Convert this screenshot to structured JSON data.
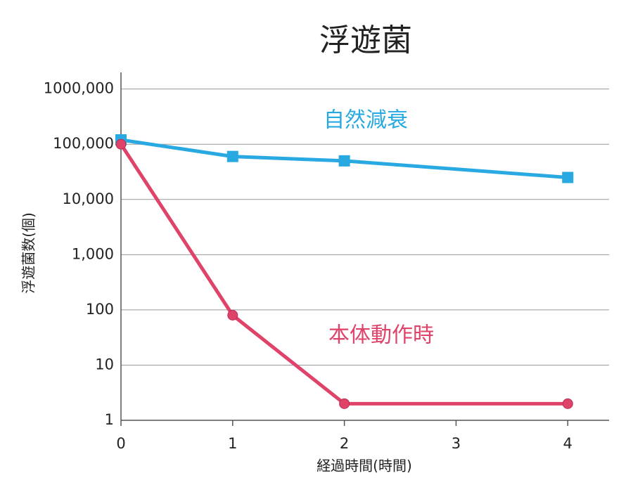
{
  "chart_data": {
    "type": "line",
    "title": "浮遊菌",
    "x_label": "経過時間(時間)",
    "y_label": "浮遊菌数(個)",
    "x": [
      0,
      1,
      2,
      4
    ],
    "series": [
      {
        "name": "自然減衰",
        "color": "#29a9e1",
        "marker": "square",
        "values": [
          120000,
          60000,
          50000,
          25000
        ]
      },
      {
        "name": "本体動作時",
        "color": "#e0436a",
        "marker": "circle",
        "values": [
          100000,
          80,
          2,
          2
        ]
      }
    ],
    "xlim": [
      0,
      4.37
    ],
    "xticks": [
      0,
      1,
      2,
      3,
      4
    ],
    "ylim": [
      1,
      2000000
    ],
    "yscale": "log",
    "yticks": [
      1,
      10,
      100,
      {
        "value": 1000,
        "label": "1,000"
      },
      {
        "value": 10000,
        "label": "10,000"
      },
      {
        "value": 100000,
        "label": "100,000"
      },
      {
        "value": 1000000,
        "label": "1000,000"
      }
    ],
    "grid": true
  }
}
